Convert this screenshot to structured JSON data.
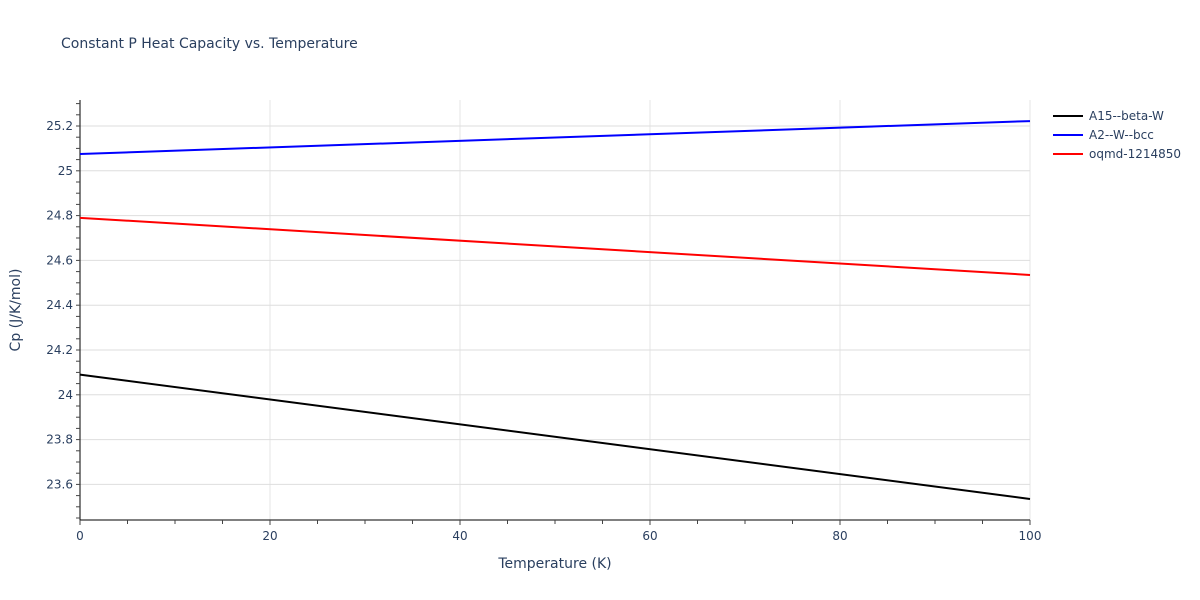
{
  "title": "Constant P Heat Capacity vs. Temperature",
  "chart_data": {
    "type": "line",
    "title": "Constant P Heat Capacity vs. Temperature",
    "xlabel": "Temperature (K)",
    "ylabel": "Cp (J/K/mol)",
    "xlim": [
      0,
      100
    ],
    "ylim": [
      23.44,
      25.32
    ],
    "x_ticks": [
      0,
      20,
      40,
      60,
      80,
      100
    ],
    "y_ticks": [
      23.6,
      23.8,
      24,
      24.2,
      24.4,
      24.6,
      24.8,
      25,
      25.2
    ],
    "y_tick_labels": [
      "23.6",
      "23.8",
      "24",
      "24.2",
      "24.4",
      "24.6",
      "24.8",
      "25",
      "25.2"
    ],
    "grid": true,
    "legend_position": "right",
    "x": [
      0,
      100
    ],
    "series": [
      {
        "name": "A15--beta-W",
        "color": "#000000",
        "values": [
          24.09,
          23.535
        ]
      },
      {
        "name": "A2--W--bcc",
        "color": "#0000ff",
        "values": [
          25.075,
          25.222
        ]
      },
      {
        "name": "oqmd-1214850",
        "color": "#ff0000",
        "values": [
          24.79,
          24.535
        ]
      }
    ]
  },
  "legend": {
    "items": [
      {
        "label": "A15--beta-W",
        "color": "#000000"
      },
      {
        "label": "A2--W--bcc",
        "color": "#0000ff"
      },
      {
        "label": "oqmd-1214850",
        "color": "#ff0000"
      }
    ]
  }
}
